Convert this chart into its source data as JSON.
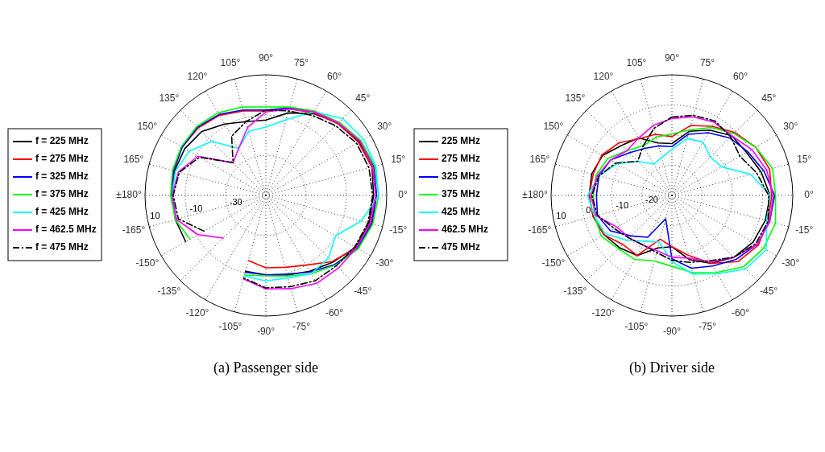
{
  "chart_data": [
    {
      "type": "radar",
      "title": "(a) Passenger side",
      "categories": [
        "90°",
        "75°",
        "60°",
        "45°",
        "30°",
        "15°",
        "0°",
        "-15°",
        "-30°",
        "-45°",
        "-60°",
        "-75°",
        "-90°",
        "-105°",
        "-120°",
        "-135°",
        "-150°",
        "-165°",
        "±180°",
        "165°",
        "150°",
        "135°",
        "120°",
        "105°"
      ],
      "ylim": [
        -50,
        10
      ],
      "yticks": [
        -30,
        -10,
        10
      ],
      "grid": true,
      "legend": "left",
      "marker": "none",
      "series": [
        {
          "name": "f = 225 MHz",
          "color": "#000000",
          "values": [
            -12.5,
            -7.5,
            -3,
            1,
            3.5,
            4.5,
            3.5,
            3,
            1.5,
            -3,
            -6.5,
            -9,
            -10.5,
            -11,
            null,
            null,
            -4,
            -3.5,
            -3.5,
            -3,
            -3.5,
            -5,
            -9,
            -12
          ]
        },
        {
          "name": "f = 275 MHz",
          "color": "#ff0000",
          "values": [
            -8,
            -5.5,
            -2.5,
            0.5,
            3,
            4.5,
            5,
            4,
            2,
            -3.5,
            -10,
            -13,
            -14,
            -16.5,
            null,
            null,
            null,
            -3.5,
            -3.3,
            -2.5,
            -2,
            -2.5,
            -4,
            -6.5
          ]
        },
        {
          "name": "f = 325 MHz",
          "color": "#0000ff",
          "values": [
            -7.5,
            -5,
            -2,
            1,
            4,
            5.5,
            5,
            4.5,
            2.5,
            -1.5,
            -6,
            -9.5,
            -10.5,
            -10.5,
            null,
            null,
            null,
            -4,
            -3,
            -2.5,
            -2,
            -2,
            -3.5,
            -6
          ]
        },
        {
          "name": "f = 375 MHz",
          "color": "#00ff00",
          "values": [
            -6,
            -4.5,
            -1.5,
            1.5,
            4.5,
            6,
            6,
            5,
            3,
            -1,
            -5,
            -8.5,
            -10,
            -9,
            null,
            null,
            -6.5,
            -3.5,
            -2.7,
            -2,
            -1.5,
            -1.5,
            -2.5,
            -4.5
          ]
        },
        {
          "name": "f = 425 MHz",
          "color": "#00ffff",
          "values": [
            -16,
            -11,
            -2,
            4,
            6,
            6.5,
            6,
            -1,
            -10,
            -6,
            -5,
            -7.5,
            -7.5,
            -8.5,
            null,
            null,
            null,
            -4,
            -3.5,
            -3.5,
            -6,
            -12,
            -23,
            -17
          ]
        },
        {
          "name": "f = 462.5 MHz",
          "color": "#ff00ff",
          "values": [
            -8.5,
            -5.5,
            -2,
            1,
            4,
            5,
            4.5,
            3.5,
            2,
            1,
            0.5,
            -2,
            -3.5,
            -7,
            null,
            -20,
            -11,
            -4,
            -3.5,
            -5,
            -11,
            -27,
            -23,
            -15
          ]
        },
        {
          "name": "f = 475 MHz",
          "color": "#000000",
          "line_style": "dashed",
          "values": [
            -7.5,
            -6.5,
            -4,
            -1,
            2,
            3,
            3,
            2.5,
            1,
            -0.5,
            -1,
            -3,
            -4,
            -7.5,
            null,
            null,
            -14.5,
            -5,
            -4,
            -5.5,
            -12,
            -27,
            -16,
            -12
          ]
        }
      ]
    },
    {
      "type": "radar",
      "title": "(b) Driver side",
      "categories": [
        "90°",
        "75°",
        "60°",
        "45°",
        "30°",
        "15°",
        "0°",
        "-15°",
        "-30°",
        "-45°",
        "-60°",
        "-75°",
        "-90°",
        "-105°",
        "-120°",
        "-135°",
        "-150°",
        "-165°",
        "±180°",
        "165°",
        "150°",
        "135°",
        "120°",
        "105°"
      ],
      "ylim": [
        -30,
        10
      ],
      "yticks": [
        -20,
        -10,
        0,
        10
      ],
      "grid": true,
      "legend": "left",
      "marker": "none",
      "series": [
        {
          "name": "225 MHz",
          "color": "#000000",
          "values": [
            -12.8,
            -8,
            -5,
            -2,
            -1.5,
            0.5,
            2.5,
            2,
            1,
            -1,
            -4,
            -8,
            -13,
            -12,
            -7,
            -5.5,
            -4,
            -3,
            -2.6,
            -2.5,
            -3.5,
            -6.5,
            -8,
            -12
          ]
        },
        {
          "name": "275 MHz",
          "color": "#ff0000",
          "values": [
            -10.5,
            -6,
            -3.5,
            -0.5,
            2,
            3.5,
            3,
            3,
            3,
            1,
            -4,
            -9.5,
            -13,
            -15,
            -7,
            -7,
            -4,
            -3,
            -2.6,
            -3,
            -3.2,
            -5.3,
            -8.3,
            -9
          ]
        },
        {
          "name": "325 MHz",
          "color": "#0000ff",
          "values": [
            -13.8,
            -9,
            -6,
            -3,
            -1,
            1.5,
            4,
            3.5,
            2.5,
            0,
            -3,
            -5,
            -9,
            -22,
            -14,
            -11,
            -6.5,
            -4.5,
            -5,
            -5,
            -6.5,
            -10,
            -12,
            -13
          ]
        },
        {
          "name": "375 MHz",
          "color": "#00ff00",
          "values": [
            -9.6,
            -7.5,
            -4,
            -1,
            2,
            4.5,
            4.3,
            5.5,
            5,
            3.5,
            -0.5,
            -3.5,
            -6.5,
            -7.5,
            -5.5,
            -5,
            -3,
            -3.5,
            -4,
            -4,
            -5.5,
            -9,
            -11,
            -10
          ]
        },
        {
          "name": "425 MHz",
          "color": "#00ffff",
          "values": [
            -14.7,
            -10.5,
            -9.5,
            -12,
            -11,
            -3,
            2.6,
            2.5,
            6,
            4.5,
            0,
            -3,
            -8,
            -14,
            -12.5,
            -9,
            -4.5,
            -3.5,
            -2.1,
            -5,
            -9,
            -14,
            -18,
            -17
          ]
        },
        {
          "name": "462.5 MHz",
          "color": "#ff00ff",
          "values": [
            -4.5,
            -3,
            -2,
            -2,
            0.5,
            2.5,
            3.5,
            3.5,
            2.5,
            -1,
            -4.5,
            -8.5,
            -9.5,
            -11,
            -11,
            -10,
            -9,
            -4,
            -3.2,
            -4.5,
            -6.5,
            -9,
            -8,
            -6
          ]
        },
        {
          "name": "475 MHz",
          "color": "#000000",
          "line_style": "dashed",
          "values": [
            -4,
            -2.5,
            -1.5,
            -2.5,
            -4,
            -1,
            2,
            3,
            2,
            -1,
            -5,
            -7,
            -8.5,
            -10.4,
            -11,
            -10,
            -8,
            -4.5,
            -3.5,
            -5,
            -8.5,
            -14,
            -11,
            -7
          ]
        }
      ]
    }
  ]
}
